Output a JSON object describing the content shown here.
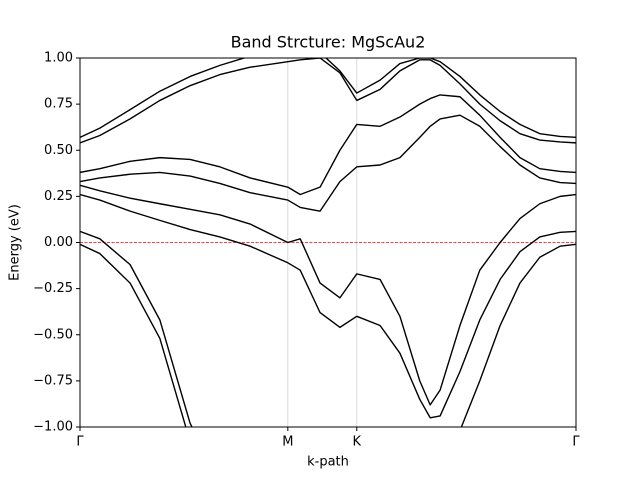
{
  "chart_data": {
    "type": "line",
    "title": "Band Strcture: MgScAu2",
    "xlabel": "k-path",
    "ylabel": "Energy (eV)",
    "x": [
      0,
      0.04,
      0.101,
      0.161,
      0.222,
      0.282,
      0.343,
      0.419,
      0.444,
      0.484,
      0.524,
      0.558,
      0.605,
      0.645,
      0.685,
      0.706,
      0.726,
      0.766,
      0.806,
      0.847,
      0.887,
      0.927,
      0.968,
      1
    ],
    "series": [
      {
        "color": "#000000",
        "values": [
          0.57,
          0.62,
          0.72,
          0.82,
          0.9,
          0.96,
          1.01,
          1.06,
          1.06,
          1.03,
          0.93,
          0.81,
          0.88,
          0.97,
          1.0,
          1.0,
          0.98,
          0.9,
          0.8,
          0.71,
          0.64,
          0.59,
          0.575,
          0.57
        ]
      },
      {
        "color": "#000000",
        "values": [
          0.54,
          0.58,
          0.67,
          0.77,
          0.85,
          0.91,
          0.95,
          0.98,
          0.99,
          1.0,
          0.92,
          0.77,
          0.83,
          0.93,
          0.99,
          0.99,
          0.96,
          0.86,
          0.75,
          0.66,
          0.59,
          0.555,
          0.545,
          0.54
        ]
      },
      {
        "color": "#000000",
        "values": [
          0.38,
          0.4,
          0.44,
          0.46,
          0.45,
          0.41,
          0.35,
          0.3,
          0.26,
          0.3,
          0.5,
          0.64,
          0.63,
          0.68,
          0.75,
          0.78,
          0.8,
          0.79,
          0.69,
          0.57,
          0.46,
          0.4,
          0.385,
          0.38
        ]
      },
      {
        "color": "#000000",
        "values": [
          0.33,
          0.35,
          0.37,
          0.38,
          0.36,
          0.32,
          0.27,
          0.23,
          0.19,
          0.17,
          0.33,
          0.41,
          0.42,
          0.46,
          0.57,
          0.63,
          0.67,
          0.69,
          0.63,
          0.52,
          0.42,
          0.35,
          0.325,
          0.32
        ]
      },
      {
        "color": "#000000",
        "values": [
          0.31,
          0.28,
          0.24,
          0.21,
          0.18,
          0.15,
          0.1,
          0.0,
          0.02,
          -0.22,
          -0.3,
          -0.17,
          -0.2,
          -0.4,
          -0.75,
          -0.88,
          -0.8,
          -0.45,
          -0.15,
          0.0,
          0.13,
          0.21,
          0.25,
          0.26
        ]
      },
      {
        "color": "#000000",
        "values": [
          0.26,
          0.23,
          0.17,
          0.12,
          0.07,
          0.03,
          -0.02,
          -0.11,
          -0.15,
          -0.38,
          -0.46,
          -0.4,
          -0.45,
          -0.6,
          -0.85,
          -0.95,
          -0.94,
          -0.7,
          -0.42,
          -0.2,
          -0.05,
          0.03,
          0.055,
          0.06
        ]
      },
      {
        "color": "#000000",
        "values": [
          0.06,
          0.02,
          -0.12,
          -0.42,
          -0.98,
          -1.3,
          null,
          null,
          null,
          null,
          null,
          null,
          null,
          null,
          null,
          null,
          -1.4,
          -1.02,
          -0.75,
          -0.45,
          -0.22,
          -0.08,
          -0.02,
          -0.01
        ]
      },
      {
        "color": "#000000",
        "values": [
          -0.01,
          -0.06,
          -0.22,
          -0.52,
          -1.08,
          -1.4,
          null,
          null,
          null,
          null,
          null,
          null,
          null,
          null,
          null,
          null,
          null,
          null,
          null,
          null,
          null,
          null,
          null,
          null
        ]
      }
    ],
    "fermi_level": 0,
    "fermi_color": "#ff0000",
    "xlim": [
      0,
      1
    ],
    "xticks": [
      {
        "value": 0,
        "label": "Γ"
      },
      {
        "value": 0.419,
        "label": "M"
      },
      {
        "value": 0.558,
        "label": "K"
      },
      {
        "value": 1,
        "label": "Γ"
      }
    ],
    "ylim": [
      -1,
      1
    ],
    "yticks": [
      {
        "value": -1,
        "label": "−1.00"
      },
      {
        "value": -0.75,
        "label": "−0.75"
      },
      {
        "value": -0.5,
        "label": "−0.50"
      },
      {
        "value": -0.25,
        "label": "−0.25"
      },
      {
        "value": 0,
        "label": "0.00"
      },
      {
        "value": 0.25,
        "label": "0.25"
      },
      {
        "value": 0.5,
        "label": "0.50"
      },
      {
        "value": 0.75,
        "label": "0.75"
      },
      {
        "value": 1,
        "label": "1.00"
      }
    ]
  }
}
